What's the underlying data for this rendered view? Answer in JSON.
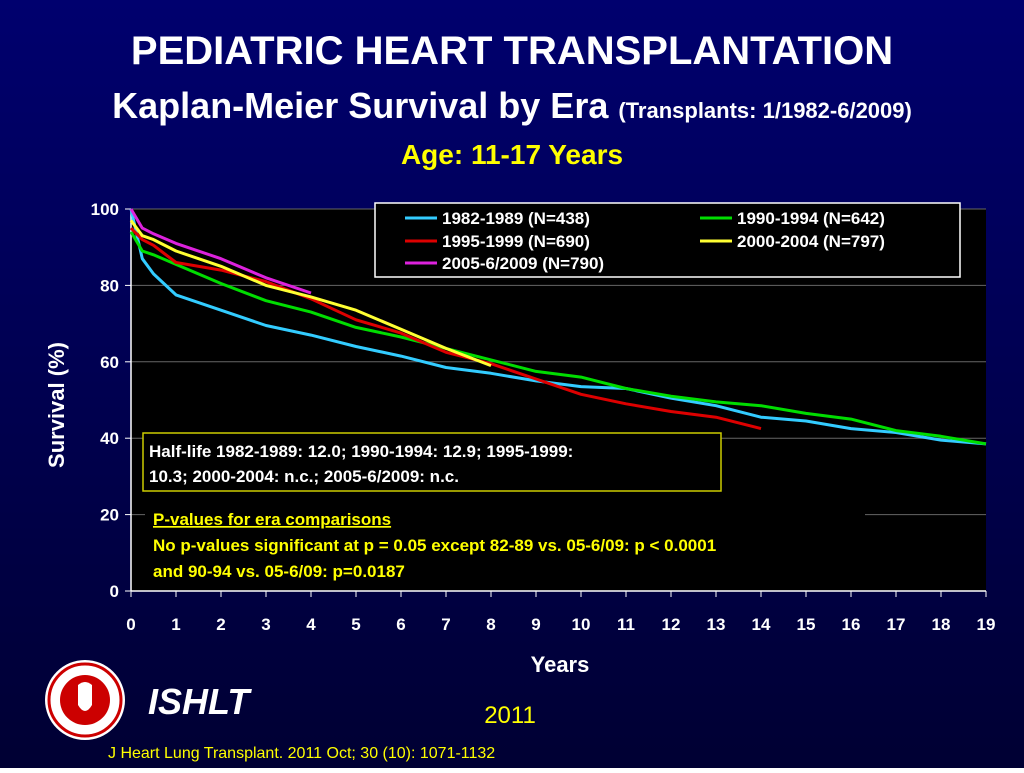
{
  "chart_data": {
    "type": "line",
    "title": "PEDIATRIC HEART TRANSPLANTATION",
    "subtitle": "Kaplan-Meier Survival by Era",
    "subtitle_note": "(Transplants: 1/1982-6/2009)",
    "subtitle2": "Age: 11-17 Years",
    "xlabel": "Years",
    "ylabel": "Survival (%)",
    "x": [
      0,
      0.25,
      0.5,
      1,
      2,
      3,
      4,
      5,
      6,
      7,
      8,
      9,
      10,
      11,
      12,
      13,
      14,
      15,
      16,
      17,
      18,
      19
    ],
    "series": [
      {
        "name": "1982-1989 (N=438)",
        "color": "#33ccff",
        "values": [
          100,
          87,
          83,
          77.5,
          73.5,
          69.5,
          67,
          64,
          61.5,
          58.5,
          57,
          55,
          53.5,
          53,
          50.5,
          48.5,
          45.5,
          44.5,
          42.5,
          41.5,
          39.5,
          38.5
        ]
      },
      {
        "name": "1990-1994 (N=642)",
        "color": "#00dd00",
        "values": [
          94,
          89,
          88,
          85.5,
          80.5,
          76,
          73,
          69,
          66.5,
          63.5,
          60.5,
          57.5,
          56,
          53,
          51,
          49.5,
          48.5,
          46.5,
          45,
          42,
          40.5,
          38.5
        ]
      },
      {
        "name": "1995-1999 (N=690)",
        "color": "#dd0000",
        "values": [
          95,
          92,
          90.5,
          86,
          84,
          81,
          76.5,
          71,
          67.5,
          62.5,
          59.5,
          55.5,
          51.5,
          49,
          47,
          45.5,
          42.5,
          null,
          null,
          null,
          null,
          null
        ]
      },
      {
        "name": "2000-2004 (N=797)",
        "color": "#ffff33",
        "values": [
          97,
          93,
          92,
          89,
          85,
          80,
          77,
          73.5,
          68.5,
          63.5,
          59,
          null,
          null,
          null,
          null,
          null,
          null,
          null,
          null,
          null,
          null,
          null
        ]
      },
      {
        "name": "2005-6/2009 (N=790)",
        "color": "#dd22dd",
        "values": [
          100,
          95,
          93.5,
          91,
          87,
          82,
          78,
          null,
          null,
          null,
          null,
          null,
          null,
          null,
          null,
          null,
          null,
          null,
          null,
          null,
          null,
          null
        ]
      }
    ],
    "xlim": [
      0,
      19
    ],
    "xticks": [
      0,
      1,
      2,
      3,
      4,
      5,
      6,
      7,
      8,
      9,
      10,
      11,
      12,
      13,
      14,
      15,
      16,
      17,
      18,
      19
    ],
    "ylim": [
      0,
      100
    ],
    "yticks": [
      0,
      20,
      40,
      60,
      80,
      100
    ],
    "grid": true,
    "legend": "top-right",
    "annotations": {
      "half_life": [
        "Half-life 1982-1989: 12.0; 1990-1994: 12.9; 1995-1999:",
        "10.3; 2000-2004: n.c.; 2005-6/2009: n.c."
      ],
      "p_values_title": "P-values for era comparisons",
      "p_values": [
        "No p-values significant at p = 0.05 except 82-89 vs. 05-6/09: p < 0.0001",
        "and 90-94 vs. 05-6/09: p=0.0187"
      ]
    }
  },
  "footer": {
    "org": "ISHLT",
    "year": "2011",
    "citation": "J Heart Lung Transplant. 2011 Oct; 30 (10): 1071-1132"
  }
}
